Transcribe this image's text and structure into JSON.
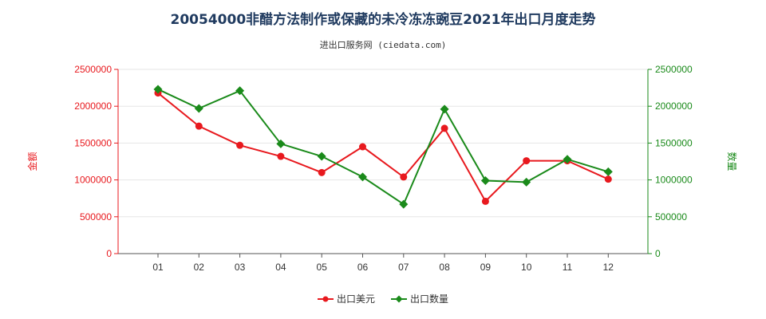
{
  "title": "20054000非醋方法制作或保藏的未冷冻冻豌豆2021年出口月度走势",
  "subtitle": "进出口服务网 (ciedata.com)",
  "colors": {
    "amount": "#e8191e",
    "quantity": "#1a8a1a",
    "grid": "#e6e6e6",
    "axis": "#555555"
  },
  "chart_data": {
    "type": "line",
    "categories": [
      "01",
      "02",
      "03",
      "04",
      "05",
      "06",
      "07",
      "08",
      "09",
      "10",
      "11",
      "12"
    ],
    "left_axis": {
      "label": "金额",
      "ylim": [
        0,
        2500000
      ],
      "ticks": [
        "0",
        "500000",
        "1000000",
        "1500000",
        "2000000",
        "2500000"
      ]
    },
    "right_axis": {
      "label": "数量",
      "ylim": [
        0,
        2500000
      ],
      "ticks": [
        "0",
        "500000",
        "1000000",
        "1500000",
        "2000000",
        "2500000"
      ]
    },
    "series": [
      {
        "name": "出口美元",
        "axis": "left",
        "values": [
          2180000,
          1730000,
          1470000,
          1320000,
          1100000,
          1450000,
          1040000,
          1700000,
          710000,
          1260000,
          1260000,
          1010000
        ]
      },
      {
        "name": "出口数量",
        "axis": "right",
        "values": [
          2230000,
          1970000,
          2210000,
          1490000,
          1320000,
          1040000,
          670000,
          1960000,
          990000,
          970000,
          1280000,
          1110000
        ]
      }
    ],
    "grid": true,
    "legend_position": "bottom-center"
  }
}
